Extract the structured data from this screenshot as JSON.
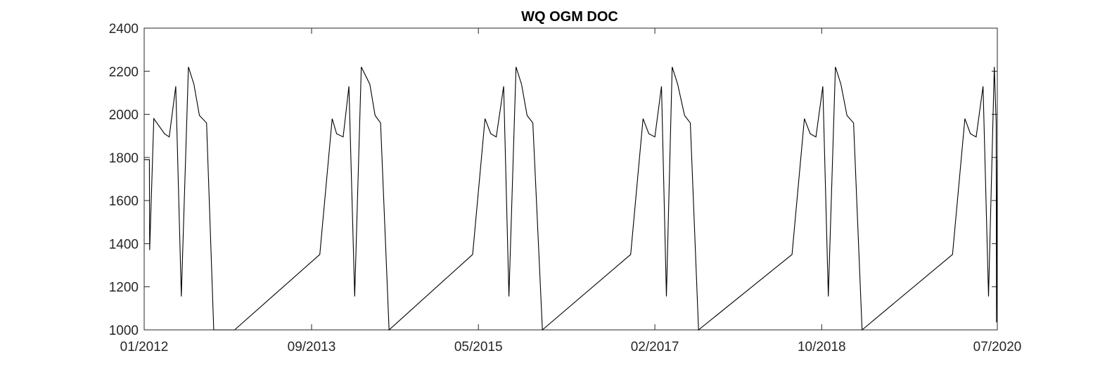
{
  "chart_data": {
    "type": "line",
    "title": "WQ OGM DOC",
    "xlabel": "",
    "ylabel": "",
    "x_range": [
      "2012-01-01",
      "2020-07-01"
    ],
    "ylim": [
      1000,
      2400
    ],
    "y_ticks": [
      1000,
      1200,
      1400,
      1600,
      1800,
      2000,
      2200,
      2400
    ],
    "x_ticks": [
      {
        "date": "2012-01-01",
        "label": "01/2012"
      },
      {
        "date": "2013-09-01",
        "label": "09/2013"
      },
      {
        "date": "2015-05-01",
        "label": "05/2015"
      },
      {
        "date": "2017-02-01",
        "label": "02/2017"
      },
      {
        "date": "2018-10-01",
        "label": "10/2018"
      },
      {
        "date": "2020-07-01",
        "label": "07/2020"
      }
    ],
    "grid": false,
    "legend": "none",
    "colors": {
      "line": "#000000",
      "axes": "#262626"
    },
    "series": [
      {
        "x": [
          "2012-01-01",
          "2012-01-20",
          "2012-01-21",
          "2012-02-05",
          "2012-03-15",
          "2012-04-01",
          "2012-04-25",
          "2012-05-15",
          "2012-06-10",
          "2012-06-30",
          "2012-07-20",
          "2012-08-15",
          "2012-09-10",
          "2012-10-05",
          "2012-11-25",
          "2013-10-01",
          "2013-11-15",
          "2013-12-01",
          "2013-12-25",
          "2014-01-15",
          "2014-02-05",
          "2014-03-01",
          "2014-04-01",
          "2014-04-20",
          "2014-05-10",
          "2014-06-10",
          "2015-04-10",
          "2015-05-25",
          "2015-06-15",
          "2015-07-05",
          "2015-08-01",
          "2015-08-20",
          "2015-09-15",
          "2015-10-05",
          "2015-10-25",
          "2015-11-15",
          "2015-12-20",
          "2016-11-05",
          "2016-12-20",
          "2017-01-10",
          "2017-02-01",
          "2017-02-25",
          "2017-03-15",
          "2017-04-05",
          "2017-04-25",
          "2017-05-20",
          "2017-06-10",
          "2017-07-10",
          "2018-06-15",
          "2018-07-30",
          "2018-08-20",
          "2018-09-10",
          "2018-10-05",
          "2018-10-25",
          "2018-11-20",
          "2018-12-10",
          "2019-01-01",
          "2019-01-25",
          "2019-02-25",
          "2020-01-20",
          "2020-03-05",
          "2020-03-25",
          "2020-04-15",
          "2020-05-10",
          "2020-05-30",
          "2020-06-20",
          "2020-06-27",
          "2020-06-28",
          "2020-07-01"
        ],
        "values": [
          1790,
          1790,
          1370,
          1980,
          1910,
          1895,
          2130,
          1155,
          2220,
          2140,
          1995,
          1960,
          1000,
          1000,
          1000,
          1350,
          1980,
          1910,
          1895,
          2130,
          1155,
          2220,
          2140,
          1995,
          1960,
          1000,
          1350,
          1980,
          1910,
          1895,
          2130,
          1155,
          2220,
          2140,
          1995,
          1960,
          1000,
          1350,
          1980,
          1910,
          1895,
          2130,
          1155,
          2220,
          2140,
          1995,
          1960,
          1000,
          1350,
          1980,
          1910,
          1895,
          2130,
          1155,
          2220,
          2140,
          1995,
          1960,
          1000,
          1350,
          1980,
          1910,
          1895,
          2130,
          1155,
          2220,
          1960,
          1035,
          1790
        ]
      }
    ]
  }
}
